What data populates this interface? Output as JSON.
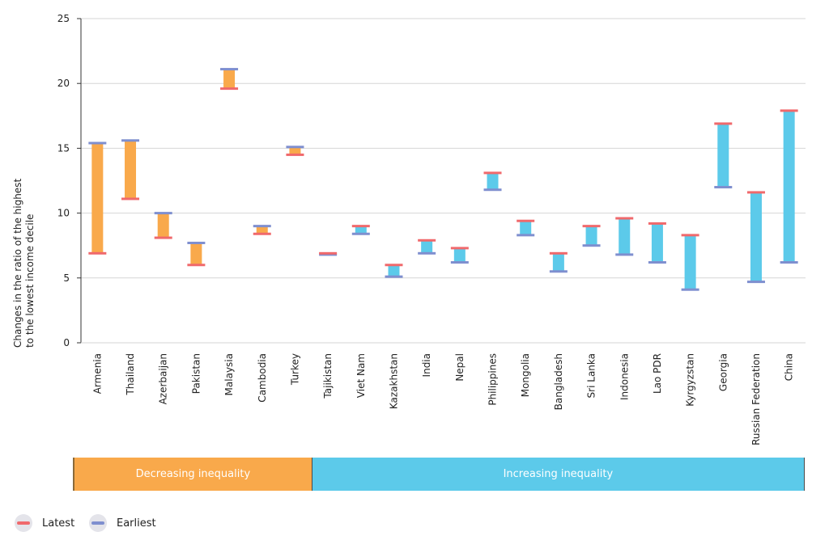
{
  "chart_data": {
    "type": "range-bar",
    "ylabel": "Changes in the ratio of the highest to the lowest income decile",
    "ylim": [
      0,
      25
    ],
    "yticks": [
      0,
      5,
      10,
      15,
      20,
      25
    ],
    "grid": true,
    "categories": [
      "Armenia",
      "Thailand",
      "Azerbaijan",
      "Pakistan",
      "Malaysia",
      "Cambodia",
      "Turkey",
      "Tajikistan",
      "Viet Nam",
      "Kazakhstan",
      "India",
      "Nepal",
      "Philippines",
      "Mongolia",
      "Bangladesh",
      "Sri Lanka",
      "Indonesia",
      "Lao PDR",
      "Kyrgyzstan",
      "Georgia",
      "Russian Federation",
      "China"
    ],
    "series": [
      {
        "name": "Latest",
        "values": [
          6.9,
          11.1,
          8.1,
          6.0,
          19.6,
          8.4,
          14.5,
          6.9,
          9.0,
          6.0,
          7.9,
          7.3,
          13.1,
          9.4,
          6.9,
          9.0,
          9.6,
          9.2,
          8.3,
          16.9,
          11.6,
          17.9
        ]
      },
      {
        "name": "Earliest",
        "values": [
          15.4,
          15.6,
          10.0,
          7.7,
          21.1,
          9.0,
          15.1,
          6.8,
          8.4,
          5.1,
          6.9,
          6.2,
          11.8,
          8.3,
          5.5,
          7.5,
          6.8,
          6.2,
          4.1,
          12.0,
          4.7,
          6.2
        ]
      }
    ],
    "groups": [
      {
        "label": "Decreasing inequality",
        "count": 7,
        "color": "#f9a94b"
      },
      {
        "label": "Increasing inequality",
        "count": 15,
        "color": "#5ccaea"
      }
    ],
    "colors": {
      "latest": "#f0696c",
      "earliest": "#7f8fcf",
      "grid": "#d6d6d6",
      "axis": "#333333"
    }
  },
  "legend": {
    "latest": "Latest",
    "earliest": "Earliest"
  }
}
